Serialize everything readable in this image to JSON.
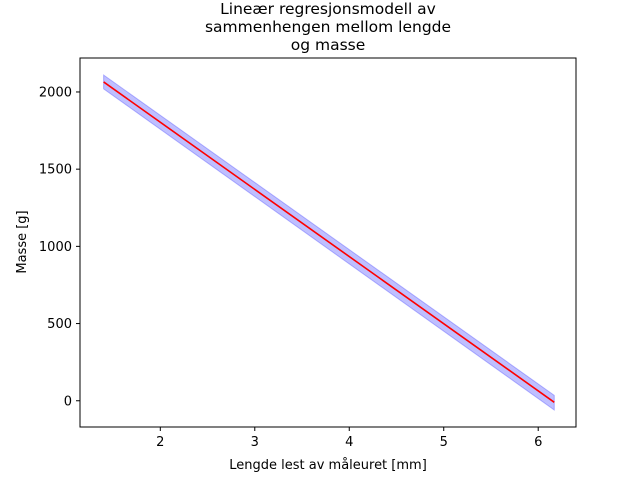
{
  "chart_data": {
    "type": "line",
    "title_lines": [
      "Lineær regresjonsmodell av",
      "sammenhengen mellom lengde",
      "og masse"
    ],
    "xlabel": "Lengde lest av måleuret [mm]",
    "ylabel": "Masse [g]",
    "xlim": [
      1.15,
      6.4
    ],
    "ylim": [
      -170,
      2220
    ],
    "xticks": [
      2,
      3,
      4,
      5,
      6
    ],
    "xtick_labels": [
      "2",
      "3",
      "4",
      "5",
      "6"
    ],
    "yticks": [
      0,
      500,
      1000,
      1500,
      2000
    ],
    "ytick_labels": [
      "0",
      "500",
      "1000",
      "1500",
      "2000"
    ],
    "grid": false,
    "series": [
      {
        "kind": "line",
        "color": "#ff0000",
        "x": [
          1.4,
          6.17
        ],
        "y": [
          2065,
          -10
        ]
      },
      {
        "kind": "band",
        "color": "#0000ff",
        "opacity": 0.25,
        "x": [
          1.4,
          6.17
        ],
        "y_lower": [
          2020,
          -60
        ],
        "y_upper": [
          2110,
          35
        ]
      }
    ]
  }
}
